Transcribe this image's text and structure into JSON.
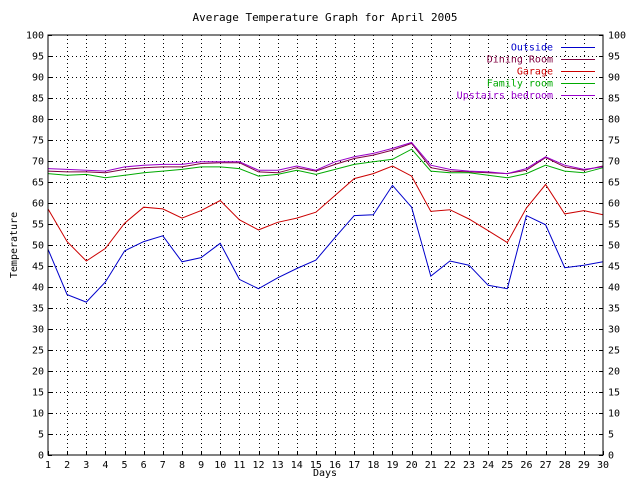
{
  "chart_data": {
    "type": "line",
    "title": "Average Temperature Graph for April 2005",
    "xlabel": "Days",
    "ylabel": "Temperature",
    "xlim": [
      1,
      30
    ],
    "ylim": [
      0,
      100
    ],
    "x_ticks": [
      1,
      2,
      3,
      4,
      5,
      6,
      7,
      8,
      9,
      10,
      11,
      12,
      13,
      14,
      15,
      16,
      17,
      18,
      19,
      20,
      21,
      22,
      23,
      24,
      25,
      26,
      27,
      28,
      29,
      30
    ],
    "y_ticks": [
      0,
      5,
      10,
      15,
      20,
      25,
      30,
      35,
      40,
      45,
      50,
      55,
      60,
      65,
      70,
      75,
      80,
      85,
      90,
      95,
      100
    ],
    "grid": true,
    "legend_position": "top-right",
    "x": [
      1,
      2,
      3,
      4,
      5,
      6,
      7,
      8,
      9,
      10,
      11,
      12,
      13,
      14,
      15,
      16,
      17,
      18,
      19,
      20,
      21,
      22,
      23,
      24,
      25,
      26,
      27,
      28,
      29,
      30
    ],
    "series": [
      {
        "name": "Outside",
        "color": "#0000cc",
        "values": [
          49,
          38.2,
          36.4,
          41.2,
          48.6,
          50.8,
          52.2,
          46,
          47,
          50.4,
          41.8,
          39.6,
          42.2,
          44.4,
          46.4,
          51.8,
          57,
          57.2,
          64.2,
          59,
          42.6,
          46.2,
          45.2,
          40.4,
          39.6,
          57,
          54.8,
          44.6,
          45.2,
          46
        ]
      },
      {
        "name": "Dining Room",
        "color": "#800040",
        "values": [
          67.6,
          67.4,
          67.4,
          67.2,
          68,
          68.4,
          68.6,
          68.6,
          69.4,
          69.6,
          69.6,
          67.4,
          67.2,
          68.4,
          67.6,
          69.2,
          70.6,
          71.4,
          72.6,
          74.2,
          68.4,
          67.6,
          67.4,
          67.2,
          67,
          67.8,
          70.8,
          68.6,
          67.8,
          68.8
        ]
      },
      {
        "name": "Garage",
        "color": "#cc0000",
        "values": [
          58.6,
          50.8,
          46.2,
          49.2,
          55.2,
          59,
          58.6,
          56.4,
          58.2,
          60.6,
          56,
          53.6,
          55.4,
          56.4,
          57.8,
          61.8,
          65.8,
          67,
          68.8,
          66.4,
          58,
          58.4,
          56.2,
          53.4,
          50.6,
          58.8,
          64.4,
          57.4,
          58.2,
          57.2
        ]
      },
      {
        "name": "Family room",
        "color": "#00aa00",
        "values": [
          67,
          66.6,
          66.8,
          66,
          66.6,
          67.2,
          67.6,
          68,
          68.6,
          68.6,
          68.2,
          66.4,
          66.8,
          67.8,
          66.8,
          68,
          69.2,
          69.8,
          70.4,
          72.8,
          67.6,
          67.2,
          67.2,
          66.6,
          66,
          67,
          69,
          67.6,
          67.2,
          68.4
        ]
      },
      {
        "name": "Upstairs bedroom",
        "color": "#9900cc",
        "values": [
          68.2,
          68,
          67.8,
          67.6,
          68.6,
          69,
          69.2,
          69.2,
          69.8,
          69.8,
          69.8,
          67.8,
          67.8,
          68.8,
          67.8,
          69.8,
          71,
          71.8,
          73,
          74.4,
          69,
          68,
          67.6,
          67.4,
          67,
          68.2,
          71,
          69,
          68,
          68.6
        ]
      }
    ]
  }
}
